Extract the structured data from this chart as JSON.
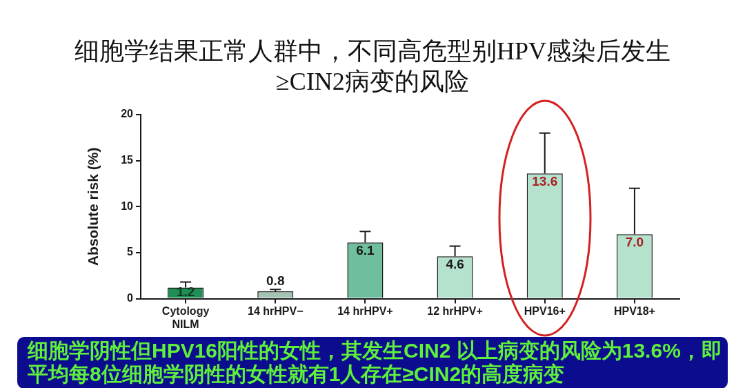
{
  "chart_data": {
    "type": "bar",
    "title": "细胞学结果正常人群中，不同高危型别HPV感染后发生≥CIN2病变的风险",
    "ylabel": "Absolute risk (%)",
    "categories": [
      "Cytology\nNILM",
      "14 hrHPV−",
      "14 hrHPV+",
      "12 hrHPV+",
      "HPV16+",
      "HPV18+"
    ],
    "values": [
      1.2,
      0.8,
      6.1,
      4.6,
      13.6,
      7.0
    ],
    "value_labels": [
      "1.2",
      "0.8",
      "6.1",
      "4.6",
      "13.6",
      "7.0"
    ],
    "colors": [
      "#1e8f55",
      "#a3c4b3",
      "#6fbe9e",
      "#b4e2cd",
      "#b4e2cd",
      "#b4e2cd"
    ],
    "errors": [
      [
        1.2,
        1.8
      ],
      [
        0.8,
        1.0
      ],
      [
        6.1,
        7.3
      ],
      [
        4.6,
        5.7
      ],
      [
        13.6,
        18.0
      ],
      [
        7.0,
        12.0
      ]
    ],
    "ylim": [
      0,
      20
    ],
    "yticks": [
      0,
      5,
      10,
      15,
      20
    ],
    "annotations": [
      "细胞学阴性但HPV16阳性的女性，其发生CIN2 以上病变的风险为13.6%，即平均每8位细胞学阴性的女性就有1人存在≥CIN2的高度病变"
    ]
  }
}
